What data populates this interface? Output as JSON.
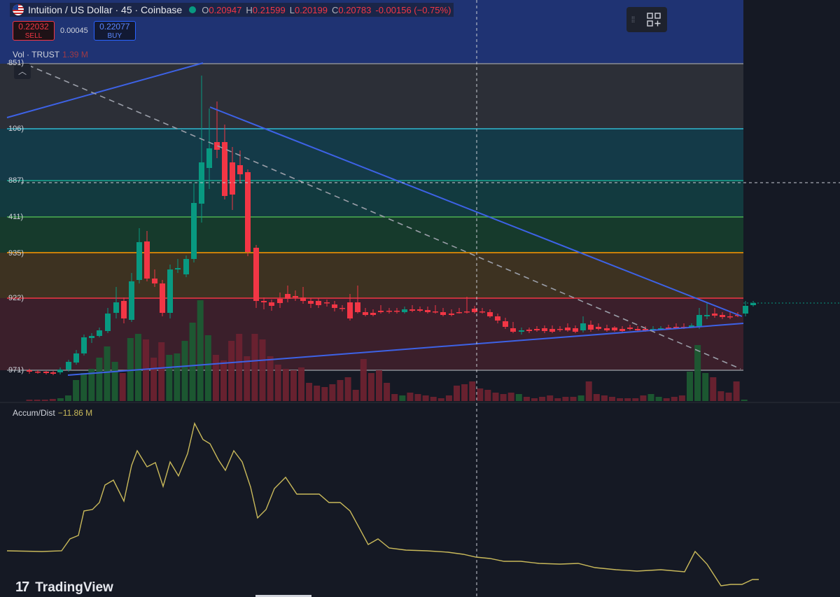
{
  "header": {
    "title": "Intuition / US Dollar · 45 · Coinbase",
    "ohlc": [
      {
        "k": "O",
        "v": "0.20947"
      },
      {
        "k": "H",
        "v": "0.21599"
      },
      {
        "k": "L",
        "v": "0.20199"
      },
      {
        "k": "C",
        "v": "0.20783"
      },
      {
        "k": "",
        "v": "-0.00156 (−0.75%)"
      }
    ]
  },
  "trade": {
    "sell_price": "0.22032",
    "sell_label": "SELL",
    "spread": "0.00045",
    "buy_price": "0.22077",
    "buy_label": "BUY"
  },
  "volume": {
    "label": "Vol · TRUST",
    "value": "1.39 M"
  },
  "indicator": {
    "label": "Accum/Dist",
    "value": "−11.86 M"
  },
  "fib_labels": [
    "851)",
    "106)",
    "887)",
    "411)",
    "935)",
    "922)",
    "971)"
  ],
  "logo": "TradingView",
  "colors": {
    "up": "#089981",
    "down": "#f23645",
    "trendline": "#3d62e6",
    "adline": "#c9b95a"
  },
  "icons": {
    "grip": "grip-icon",
    "layout": "layout-add-icon",
    "collapse": "chevron-up-icon"
  }
}
